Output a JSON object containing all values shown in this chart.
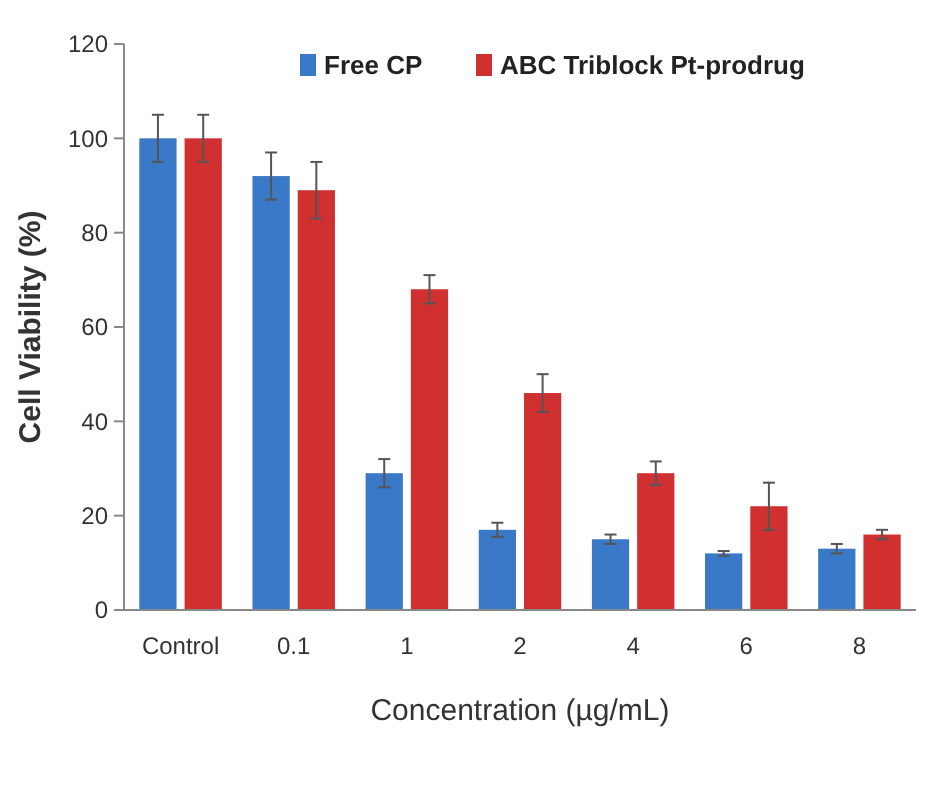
{
  "chart_data": {
    "type": "bar",
    "xlabel": "Concentration (µg/mL)",
    "ylabel": "Cell Viability (%)",
    "categories": [
      "Control",
      "0.1",
      "1",
      "2",
      "4",
      "6",
      "8"
    ],
    "series": [
      {
        "name": "Free CP",
        "color": "#3a78c8",
        "values": [
          100,
          92,
          29,
          17,
          15,
          12,
          13
        ],
        "errors": [
          5,
          5,
          3,
          1.5,
          1,
          0.5,
          1
        ]
      },
      {
        "name": "ABC Triblock Pt-prodrug",
        "color": "#d03030",
        "values": [
          100,
          89,
          68,
          46,
          29,
          22,
          16
        ],
        "errors": [
          5,
          6,
          3,
          4,
          2.5,
          5,
          1
        ]
      }
    ],
    "ylim": [
      0,
      120
    ],
    "yticks": [
      0,
      20,
      40,
      60,
      80,
      100,
      120
    ],
    "legend": "top"
  }
}
